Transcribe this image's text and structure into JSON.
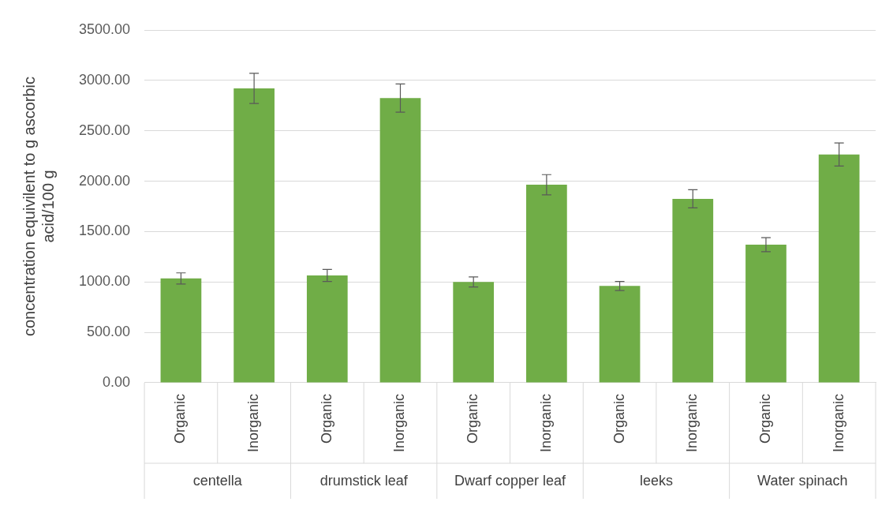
{
  "chart_data": {
    "type": "bar",
    "ylabel": "concentration equivilent to g ascorbic acid/100 g",
    "categories": [
      "Organic",
      "Inorganic",
      "Organic",
      "Inorganic",
      "Organic",
      "Inorganic",
      "Organic",
      "Inorganic",
      "Organic",
      "Inorganic"
    ],
    "values": [
      1035,
      2920,
      1065,
      2825,
      1000,
      1965,
      960,
      1825,
      1370,
      2265
    ],
    "errors": [
      55,
      150,
      60,
      140,
      50,
      100,
      45,
      90,
      70,
      115
    ],
    "color": "#70ad47",
    "annotations": [
      "centella",
      "drumstick leaf",
      "Dwarf copper leaf",
      "leeks",
      "Water spinach"
    ],
    "ylim": [
      0,
      3500
    ],
    "yticks": [
      {
        "value": 0,
        "label": "0.00"
      },
      {
        "value": 500,
        "label": "500.00"
      },
      {
        "value": 1000,
        "label": "1000.00"
      },
      {
        "value": 1500,
        "label": "1500.00"
      },
      {
        "value": 2000,
        "label": "2000.00"
      },
      {
        "value": 2500,
        "label": "2500.00"
      },
      {
        "value": 3000,
        "label": "3000.00"
      },
      {
        "value": 3500,
        "label": "3500.00"
      }
    ],
    "grid": "y",
    "legend": false
  }
}
